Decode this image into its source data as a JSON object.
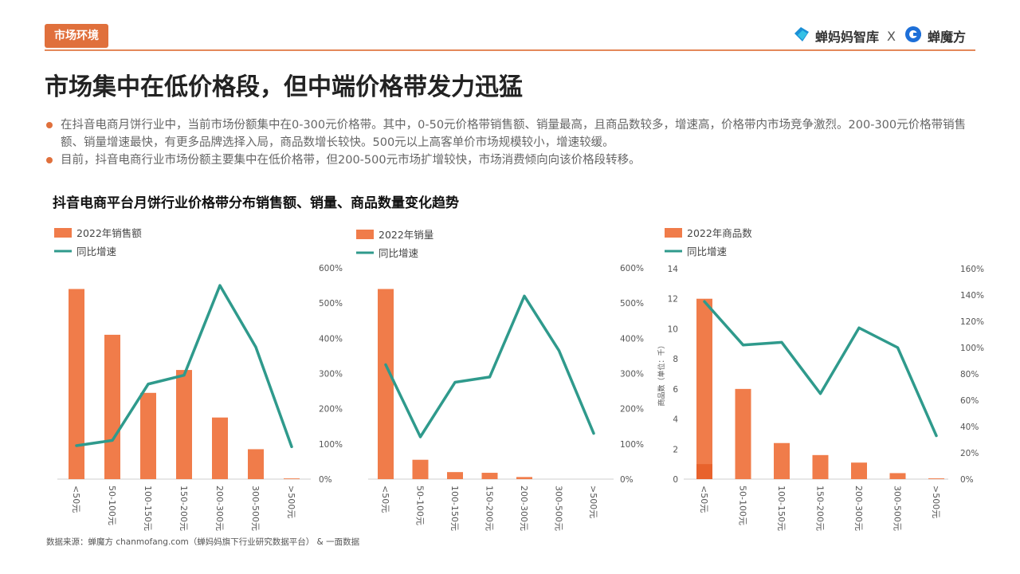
{
  "header": {
    "tag": "市场环境",
    "brand_left": "蝉妈妈智库",
    "brand_sep": "X",
    "brand_right": "蝉魔方"
  },
  "title": "市场集中在低价格段，但中端价格带发力迅猛",
  "bullets": [
    "在抖音电商月饼行业中，当前市场份额集中在0-300元价格带。其中，0-50元价格带销售额、销量最高，且商品数较多，增速高，价格带内市场竞争激烈。200-300元价格带销售额、销量增速最快，有更多品牌选择入局，商品数增长较快。500元以上高客单价市场规模较小，增速较缓。",
    "目前，抖音电商行业市场份额主要集中在低价格带，但200-500元市场扩增较快，市场消费倾向向该价格段转移。"
  ],
  "subtitle": "抖音电商平台月饼行业价格带分布销售额、销量、商品数量变化趋势",
  "colors": {
    "bar": "#f07c4a",
    "bar_dark": "#e8622c",
    "line": "#2f9a8c",
    "accent": "#e0703c"
  },
  "chart_data": [
    {
      "type": "bar",
      "categories": [
        "<50元",
        "50-100元",
        "100-150元",
        "150-200元",
        "200-300元",
        "300-500元",
        ">500元"
      ],
      "series": [
        {
          "name": "2022年销售额",
          "type": "bar",
          "axis": "left",
          "values": [
            5.4,
            4.1,
            2.45,
            3.1,
            1.75,
            0.85,
            0.02
          ]
        },
        {
          "name": "同比增速",
          "type": "line",
          "axis": "right",
          "values": [
            95,
            110,
            270,
            295,
            550,
            375,
            92
          ]
        }
      ],
      "y2_ticks": [
        "600%",
        "500%",
        "400%",
        "300%",
        "200%",
        "100%",
        "0%"
      ],
      "y2lim": [
        0,
        600
      ],
      "ylim": [
        0,
        6
      ]
    },
    {
      "type": "bar",
      "categories": [
        "<50元",
        "50-100元",
        "100-150元",
        "150-200元",
        "200-300元",
        "300-500元",
        ">500元"
      ],
      "series": [
        {
          "name": "2022年销量",
          "type": "bar",
          "axis": "left",
          "values": [
            5.4,
            0.55,
            0.2,
            0.18,
            0.06,
            0,
            0
          ]
        },
        {
          "name": "同比增速",
          "type": "line",
          "axis": "right",
          "values": [
            325,
            120,
            275,
            290,
            520,
            365,
            130
          ]
        }
      ],
      "y2_ticks": [
        "600%",
        "500%",
        "400%",
        "300%",
        "200%",
        "100%",
        "0%"
      ],
      "y2lim": [
        0,
        600
      ],
      "ylim": [
        0,
        6
      ]
    },
    {
      "type": "bar",
      "categories": [
        "<50元",
        "50-100元",
        "100-150元",
        "150-200元",
        "200-300元",
        "300-500元",
        ">500元"
      ],
      "series": [
        {
          "name": "2022年商品数",
          "type": "bar",
          "axis": "left",
          "values": [
            12,
            6,
            2.4,
            1.6,
            1.1,
            0.4,
            0.05
          ]
        },
        {
          "name": "同比增速",
          "type": "line",
          "axis": "right",
          "values": [
            135,
            102,
            104,
            65,
            115,
            100,
            33
          ]
        }
      ],
      "y_ticks": [
        "14",
        "12",
        "10",
        "8",
        "6",
        "4",
        "2",
        "0"
      ],
      "ylim": [
        0,
        14
      ],
      "ylabel": "商品数（单位：千）",
      "y2_ticks": [
        "160%",
        "140%",
        "120%",
        "100%",
        "80%",
        "60%",
        "40%",
        "20%",
        "0%"
      ],
      "y2lim": [
        0,
        160
      ]
    }
  ],
  "source": "数据来源：蝉魔方 chanmofang.com（蝉妈妈旗下行业研究数据平台） & 一面数据"
}
